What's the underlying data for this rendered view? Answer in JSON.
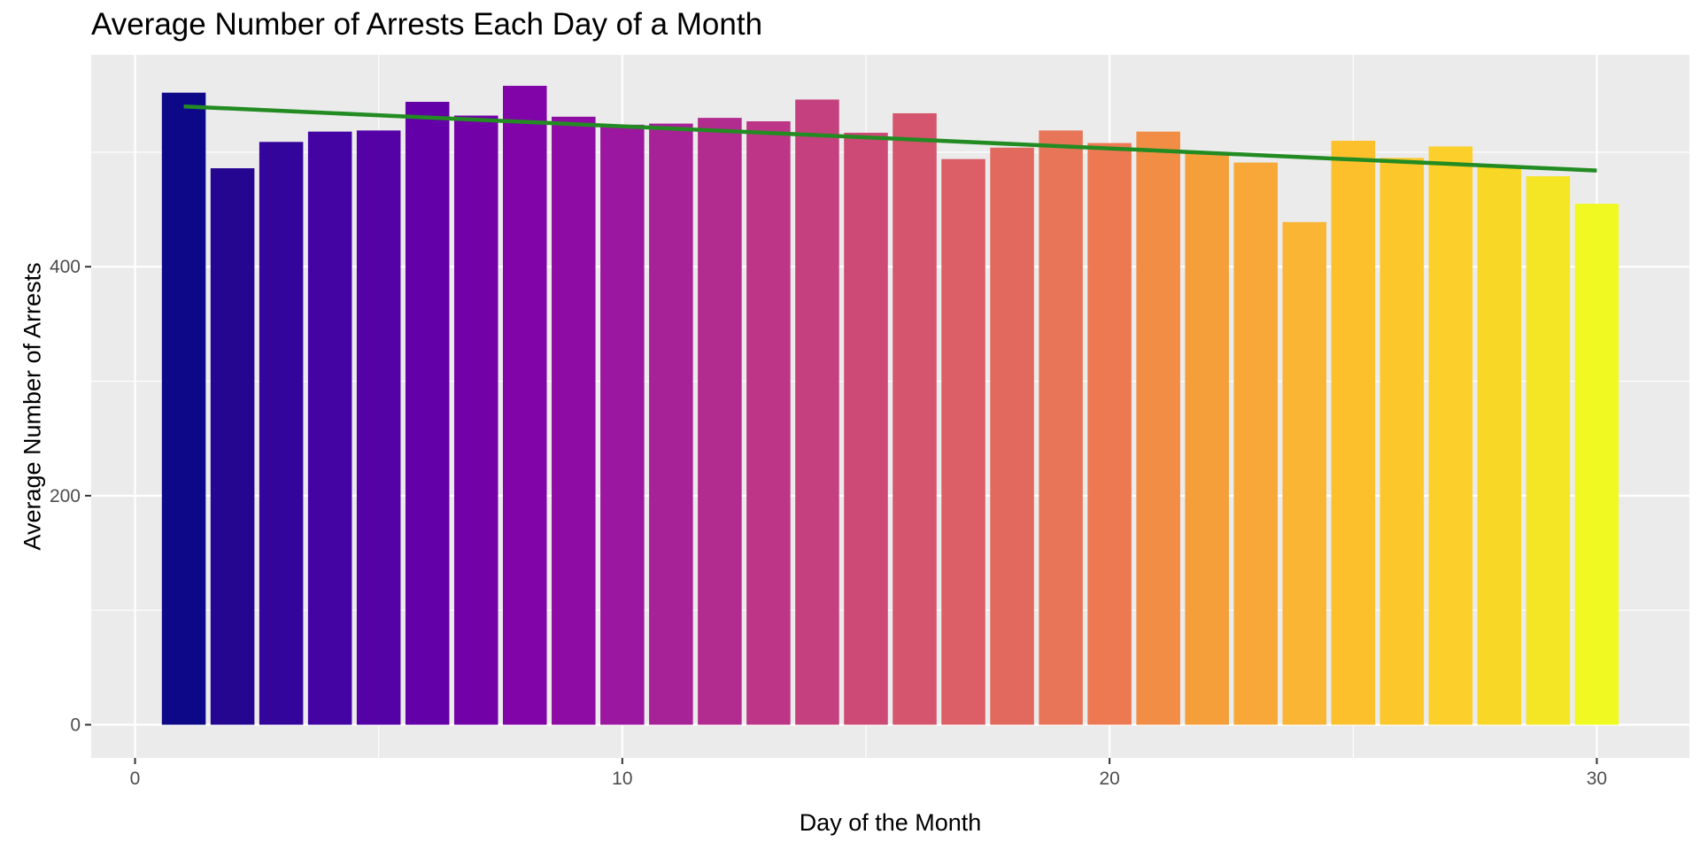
{
  "chart_data": {
    "type": "bar",
    "title": "Average Number of Arrests Each Day of a Month",
    "xlabel": "Day of the Month",
    "ylabel": "Average Number of Arrests",
    "x": [
      1,
      2,
      3,
      4,
      5,
      6,
      7,
      8,
      9,
      10,
      11,
      12,
      13,
      14,
      15,
      16,
      17,
      18,
      19,
      20,
      21,
      22,
      23,
      24,
      25,
      26,
      27,
      28,
      29,
      30
    ],
    "values": [
      552,
      486,
      509,
      518,
      519,
      544,
      532,
      558,
      531,
      524,
      525,
      530,
      527,
      546,
      517,
      534,
      494,
      504,
      519,
      508,
      518,
      500,
      491,
      439,
      510,
      495,
      505,
      487,
      479,
      455
    ],
    "bar_colors": [
      "#0d0887",
      "#240691",
      "#34059b",
      "#4403a3",
      "#5402a6",
      "#6300a7",
      "#7201a8",
      "#8004a8",
      "#8e0ca4",
      "#9b179f",
      "#a72197",
      "#b22b8f",
      "#bc3587",
      "#c5407e",
      "#cd4a76",
      "#d5546e",
      "#dc5e66",
      "#e2695e",
      "#e87557",
      "#ed7953",
      "#f18d44",
      "#f59f3b",
      "#f7a839",
      "#f9b533",
      "#fbc02c",
      "#fcc72a",
      "#fdcf2a",
      "#f9d726",
      "#f4e525",
      "#f0f921"
    ],
    "trend_line": {
      "color": "#228b22",
      "x": [
        1,
        30
      ],
      "y": [
        540,
        484
      ]
    },
    "xlim": [
      -0.9,
      31.9
    ],
    "ylim": [
      -29,
      585
    ],
    "x_ticks": [
      0,
      10,
      20,
      30
    ],
    "x_minor_ticks": [
      5,
      15,
      25
    ],
    "y_ticks": [
      0,
      200,
      400
    ],
    "y_minor_ticks": [
      100,
      300,
      500
    ],
    "x_tick_labels": [
      "0",
      "10",
      "20",
      "30"
    ],
    "y_tick_labels": [
      "0",
      "200",
      "400"
    ],
    "panel_background": "#ebebeb",
    "grid": true,
    "legend": "none"
  }
}
